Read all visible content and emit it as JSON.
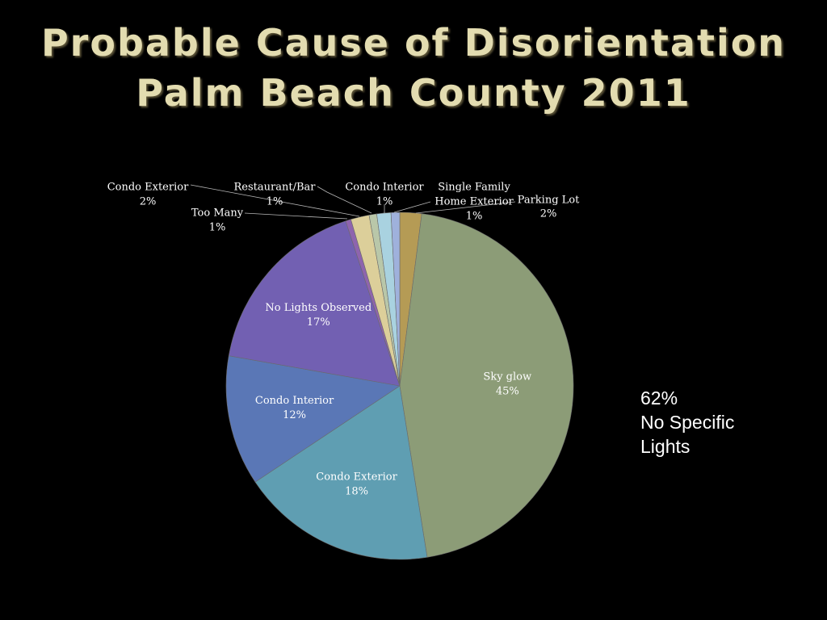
{
  "title": {
    "line1": "Probable Cause of Disorientation",
    "line2": "Palm Beach County 2011"
  },
  "note": {
    "percent": "62%",
    "line1": "No Specific",
    "line2": "Lights"
  },
  "chart_data": {
    "type": "pie",
    "title": "Probable Cause of Disorientation Palm Beach County 2011",
    "start_angle_deg": 0,
    "direction": "clockwise",
    "slices": [
      {
        "label": "Parking Lot",
        "value": 2,
        "value_label": "2%",
        "color": "#b59b55",
        "label_pos": "outside"
      },
      {
        "label": "Sky glow",
        "value": 45,
        "value_label": "45%",
        "color": "#8c9c77",
        "label_pos": "inside"
      },
      {
        "label": "Condo Exterior",
        "value": 18,
        "value_label": "18%",
        "color": "#5f9eb2",
        "label_pos": "inside"
      },
      {
        "label": "Condo Interior",
        "value": 12,
        "value_label": "12%",
        "color": "#5a77b6",
        "label_pos": "inside"
      },
      {
        "label": "No Lights Observed",
        "value": 17,
        "value_label": "17%",
        "color": "#7260b2",
        "label_pos": "inside"
      },
      {
        "label": "Too Many",
        "value": 0.5,
        "value_label": "1%",
        "color": "#8e64ae",
        "label_pos": "outside"
      },
      {
        "label": "Condo Exterior",
        "value": 1.7,
        "value_label": "2%",
        "color": "#dccf9a",
        "label_pos": "outside"
      },
      {
        "label": "Restaurant/Bar",
        "value": 0.7,
        "value_label": "1%",
        "color": "#b9c7a9",
        "label_pos": "outside"
      },
      {
        "label": "Condo Interior",
        "value": 1.3,
        "value_label": "1%",
        "color": "#a9d2e0",
        "label_pos": "outside"
      },
      {
        "label": "Single Family Home Exterior",
        "value": 0.8,
        "value_label": "1%",
        "color": "#9fb1dc",
        "label_pos": "outside"
      }
    ]
  }
}
